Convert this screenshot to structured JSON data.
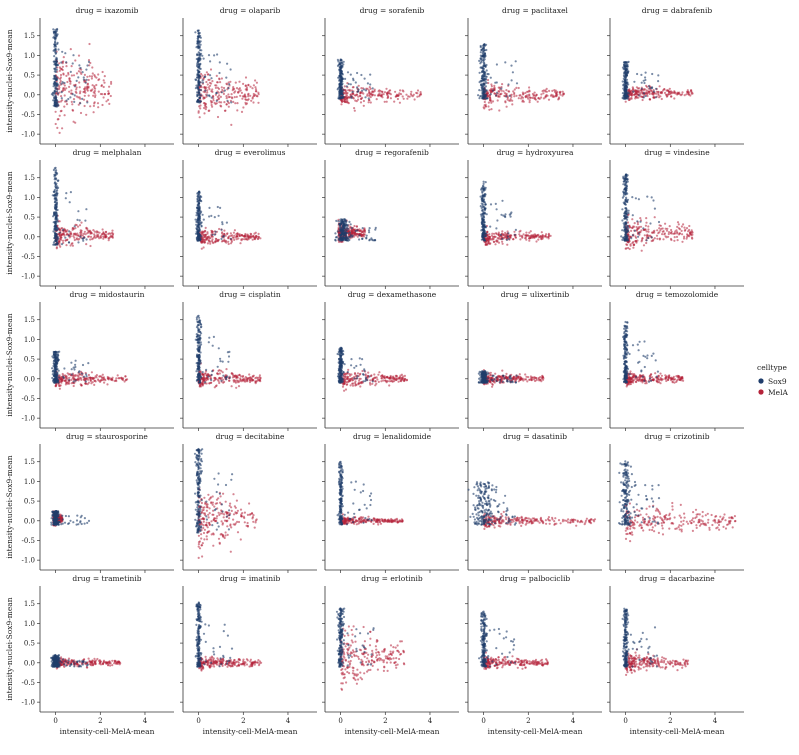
{
  "chart_data": {
    "type": "scatter",
    "layout": "facet-grid",
    "facet_prefix": "drug = ",
    "xlabel": "intensity-cell-MelA-mean",
    "ylabel": "intensity-nuclei-Sox9-mean",
    "xlim": [
      -0.7,
      5.3
    ],
    "ylim": [
      -1.25,
      1.95
    ],
    "xticks": [
      0,
      2,
      4
    ],
    "yticks": [
      -1.0,
      -0.5,
      0.0,
      0.5,
      1.0,
      1.5
    ],
    "legend": {
      "title": "celltype",
      "position": "right",
      "entries": [
        {
          "name": "Sox9",
          "color": "#1f3d6b"
        },
        {
          "name": "MelA",
          "color": "#b5233a"
        }
      ]
    },
    "series_colors": {
      "Sox9": "#1f3d6b",
      "MelA": "#b5233a"
    },
    "panels": [
      {
        "drug": "ixazomib",
        "sox9": {
          "x_center": 0.0,
          "x_spread": 0.1,
          "y_min": -0.3,
          "y_max": 1.7
        },
        "mela": {
          "x_min": 0.0,
          "x_max": 2.5,
          "y_center": 0.2,
          "y_spread": 0.45,
          "tail_y_min": -1.0
        }
      },
      {
        "drug": "olaparib",
        "sox9": {
          "x_center": 0.0,
          "x_spread": 0.1,
          "y_min": -0.2,
          "y_max": 1.65
        },
        "mela": {
          "x_min": 0.0,
          "x_max": 2.7,
          "y_center": 0.05,
          "y_spread": 0.3,
          "tail_y_min": -0.7
        }
      },
      {
        "drug": "sorafenib",
        "sox9": {
          "x_center": 0.0,
          "x_spread": 0.1,
          "y_min": -0.1,
          "y_max": 0.9
        },
        "mela": {
          "x_min": 0.0,
          "x_max": 3.6,
          "y_center": 0.0,
          "y_spread": 0.12,
          "tail_y_min": -0.2
        }
      },
      {
        "drug": "paclitaxel",
        "sox9": {
          "x_center": 0.0,
          "x_spread": 0.15,
          "y_min": -0.1,
          "y_max": 1.3
        },
        "mela": {
          "x_min": 0.0,
          "x_max": 3.6,
          "y_center": 0.0,
          "y_spread": 0.15,
          "tail_y_min": -0.3
        }
      },
      {
        "drug": "dabrafenib",
        "sox9": {
          "x_center": 0.0,
          "x_spread": 0.1,
          "y_min": -0.1,
          "y_max": 0.85
        },
        "mela": {
          "x_min": 0.0,
          "x_max": 3.0,
          "y_center": 0.05,
          "y_spread": 0.1,
          "tail_y_min": -0.2
        }
      },
      {
        "drug": "melphalan",
        "sox9": {
          "x_center": 0.0,
          "x_spread": 0.1,
          "y_min": -0.2,
          "y_max": 1.75
        },
        "mela": {
          "x_min": 0.0,
          "x_max": 2.6,
          "y_center": 0.05,
          "y_spread": 0.15,
          "tail_y_min": -0.3
        }
      },
      {
        "drug": "everolimus",
        "sox9": {
          "x_center": 0.0,
          "x_spread": 0.1,
          "y_min": -0.1,
          "y_max": 1.15
        },
        "mela": {
          "x_min": 0.0,
          "x_max": 2.8,
          "y_center": 0.0,
          "y_spread": 0.1,
          "tail_y_min": -0.2
        }
      },
      {
        "drug": "regorafenib",
        "sox9": {
          "x_center": 0.1,
          "x_spread": 0.25,
          "y_min": -0.1,
          "y_max": 0.45
        },
        "mela": {
          "x_min": -0.1,
          "x_max": 1.1,
          "y_center": 0.1,
          "y_spread": 0.12,
          "tail_y_min": -0.15
        }
      },
      {
        "drug": "hydroxyurea",
        "sox9": {
          "x_center": 0.0,
          "x_spread": 0.1,
          "y_min": -0.1,
          "y_max": 1.4
        },
        "mela": {
          "x_min": 0.0,
          "x_max": 3.0,
          "y_center": 0.0,
          "y_spread": 0.1,
          "tail_y_min": -0.2
        }
      },
      {
        "drug": "vindesine",
        "sox9": {
          "x_center": 0.0,
          "x_spread": 0.12,
          "y_min": -0.1,
          "y_max": 1.6
        },
        "mela": {
          "x_min": 0.0,
          "x_max": 3.0,
          "y_center": 0.1,
          "y_spread": 0.2,
          "tail_y_min": -0.4
        }
      },
      {
        "drug": "midostaurin",
        "sox9": {
          "x_center": 0.0,
          "x_spread": 0.12,
          "y_min": -0.1,
          "y_max": 0.7
        },
        "mela": {
          "x_min": 0.0,
          "x_max": 3.2,
          "y_center": 0.0,
          "y_spread": 0.1,
          "tail_y_min": -0.2
        }
      },
      {
        "drug": "cisplatin",
        "sox9": {
          "x_center": 0.0,
          "x_spread": 0.1,
          "y_min": -0.1,
          "y_max": 1.6
        },
        "mela": {
          "x_min": 0.0,
          "x_max": 2.8,
          "y_center": 0.0,
          "y_spread": 0.12,
          "tail_y_min": -0.2
        }
      },
      {
        "drug": "dexamethasone",
        "sox9": {
          "x_center": 0.0,
          "x_spread": 0.1,
          "y_min": -0.1,
          "y_max": 0.8
        },
        "mela": {
          "x_min": 0.0,
          "x_max": 3.0,
          "y_center": 0.0,
          "y_spread": 0.1,
          "tail_y_min": -0.2
        }
      },
      {
        "drug": "ulixertinib",
        "sox9": {
          "x_center": 0.0,
          "x_spread": 0.15,
          "y_min": -0.1,
          "y_max": 0.2
        },
        "mela": {
          "x_min": 0.0,
          "x_max": 2.7,
          "y_center": 0.0,
          "y_spread": 0.08,
          "tail_y_min": -0.15
        }
      },
      {
        "drug": "temozolomide",
        "sox9": {
          "x_center": 0.0,
          "x_spread": 0.08,
          "y_min": -0.1,
          "y_max": 1.45
        },
        "mela": {
          "x_min": 0.0,
          "x_max": 2.6,
          "y_center": 0.0,
          "y_spread": 0.08,
          "tail_y_min": -0.15
        }
      },
      {
        "drug": "staurosporine",
        "sox9": {
          "x_center": 0.0,
          "x_spread": 0.15,
          "y_min": -0.1,
          "y_max": 0.25
        },
        "mela": {
          "x_min": -0.1,
          "x_max": 0.3,
          "y_center": 0.05,
          "y_spread": 0.08,
          "tail_y_min": -0.1
        }
      },
      {
        "drug": "decitabine",
        "sox9": {
          "x_center": 0.0,
          "x_spread": 0.12,
          "y_min": -0.3,
          "y_max": 1.85
        },
        "mela": {
          "x_min": 0.0,
          "x_max": 2.6,
          "y_center": 0.1,
          "y_spread": 0.4,
          "tail_y_min": -1.05
        }
      },
      {
        "drug": "lenalidomide",
        "sox9": {
          "x_center": 0.0,
          "x_spread": 0.08,
          "y_min": -0.1,
          "y_max": 1.5
        },
        "mela": {
          "x_min": 0.0,
          "x_max": 2.8,
          "y_center": 0.0,
          "y_spread": 0.05,
          "tail_y_min": -0.1
        }
      },
      {
        "drug": "dasatinib",
        "sox9": {
          "x_center": 0.0,
          "x_spread": 0.5,
          "y_min": -0.1,
          "y_max": 1.0
        },
        "mela": {
          "x_min": 0.0,
          "x_max": 5.0,
          "y_center": 0.0,
          "y_spread": 0.08,
          "tail_y_min": -0.15
        }
      },
      {
        "drug": "crizotinib",
        "sox9": {
          "x_center": 0.0,
          "x_spread": 0.2,
          "y_min": -0.1,
          "y_max": 1.6
        },
        "mela": {
          "x_min": 0.0,
          "x_max": 5.0,
          "y_center": 0.0,
          "y_spread": 0.2,
          "tail_y_min": -0.4
        }
      },
      {
        "drug": "trametinib",
        "sox9": {
          "x_center": 0.0,
          "x_spread": 0.15,
          "y_min": -0.1,
          "y_max": 0.2
        },
        "mela": {
          "x_min": 0.0,
          "x_max": 2.9,
          "y_center": 0.0,
          "y_spread": 0.06,
          "tail_y_min": -0.1
        }
      },
      {
        "drug": "imatinib",
        "sox9": {
          "x_center": 0.0,
          "x_spread": 0.1,
          "y_min": -0.1,
          "y_max": 1.55
        },
        "mela": {
          "x_min": 0.0,
          "x_max": 2.8,
          "y_center": 0.0,
          "y_spread": 0.08,
          "tail_y_min": -0.15
        }
      },
      {
        "drug": "erlotinib",
        "sox9": {
          "x_center": 0.0,
          "x_spread": 0.12,
          "y_min": -0.1,
          "y_max": 1.4
        },
        "mela": {
          "x_min": 0.0,
          "x_max": 2.9,
          "y_center": 0.15,
          "y_spread": 0.35,
          "tail_y_min": -0.8
        }
      },
      {
        "drug": "palbociclib",
        "sox9": {
          "x_center": 0.0,
          "x_spread": 0.12,
          "y_min": -0.1,
          "y_max": 1.3
        },
        "mela": {
          "x_min": 0.0,
          "x_max": 2.9,
          "y_center": 0.0,
          "y_spread": 0.08,
          "tail_y_min": -0.15
        }
      },
      {
        "drug": "dacarbazine",
        "sox9": {
          "x_center": 0.0,
          "x_spread": 0.1,
          "y_min": -0.1,
          "y_max": 1.4
        },
        "mela": {
          "x_min": 0.0,
          "x_max": 2.8,
          "y_center": 0.0,
          "y_spread": 0.12,
          "tail_y_min": -0.2
        }
      }
    ]
  }
}
